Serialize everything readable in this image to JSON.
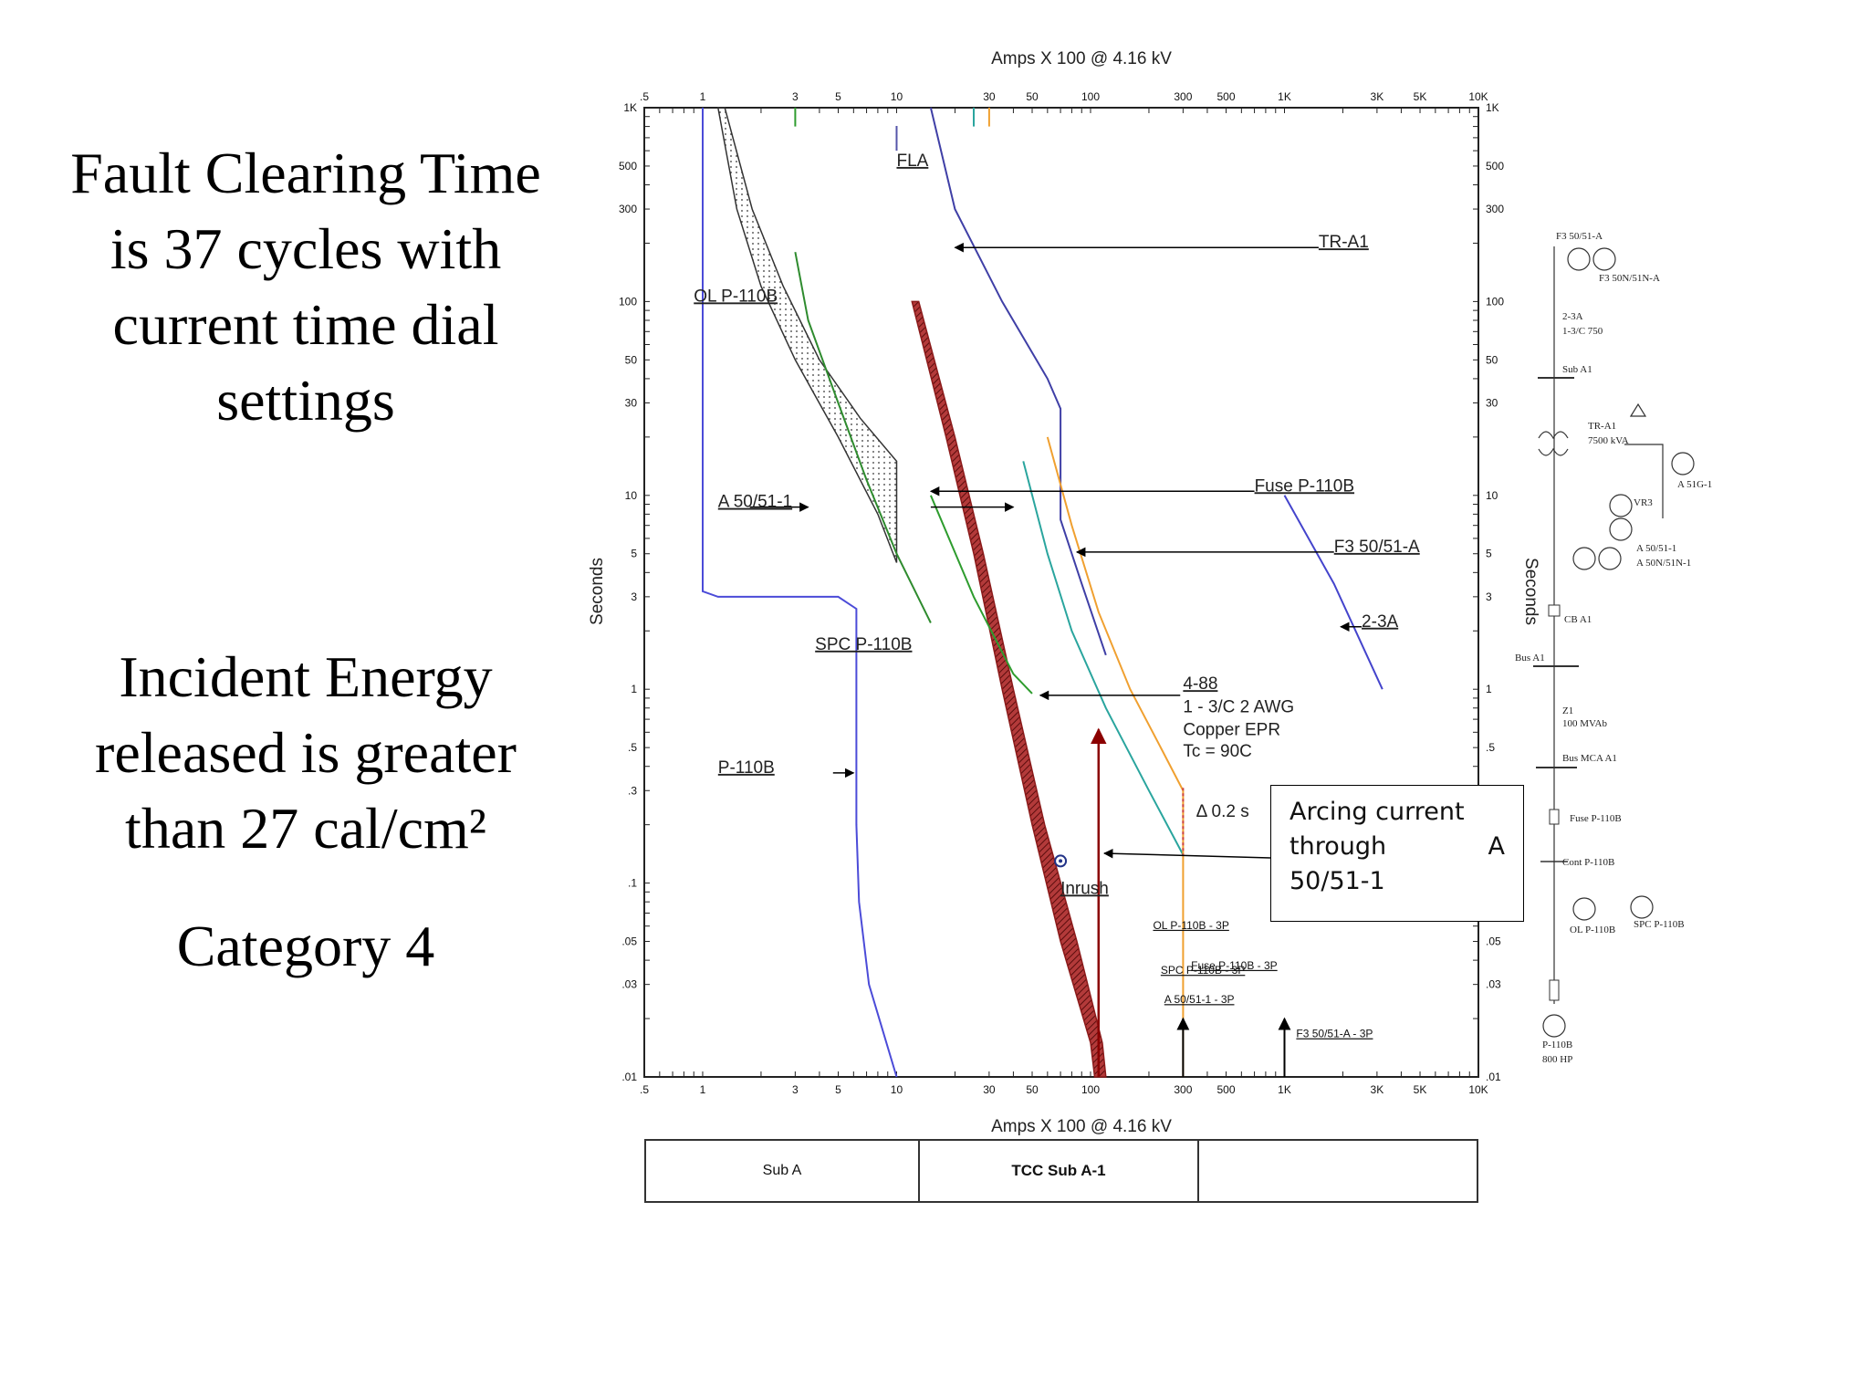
{
  "slide": {
    "title_lines": [
      "Fault Clearing Time",
      "is 37 cycles with",
      "current time dial",
      "settings"
    ],
    "energy_lines": [
      "Incident Energy",
      "released is greater",
      "than 27 cal/cm²"
    ],
    "category": "Category 4"
  },
  "chart_data": {
    "type": "line",
    "title": "",
    "xlabel": "Amps  X  100 @ 4.16 kV",
    "ylabel": "Seconds",
    "x_scale": "log",
    "y_scale": "log",
    "xlim": [
      0.5,
      10000
    ],
    "ylim": [
      0.01,
      1000
    ],
    "x_ticks": [
      {
        "v": 0.5,
        "t": ".5"
      },
      {
        "v": 1,
        "t": "1"
      },
      {
        "v": 3,
        "t": "3"
      },
      {
        "v": 5,
        "t": "5"
      },
      {
        "v": 10,
        "t": "10"
      },
      {
        "v": 30,
        "t": "30"
      },
      {
        "v": 50,
        "t": "50"
      },
      {
        "v": 100,
        "t": "100"
      },
      {
        "v": 300,
        "t": "300"
      },
      {
        "v": 500,
        "t": "500"
      },
      {
        "v": 1000,
        "t": "1K"
      },
      {
        "v": 3000,
        "t": "3K"
      },
      {
        "v": 5000,
        "t": "5K"
      },
      {
        "v": 10000,
        "t": "10K"
      }
    ],
    "y_ticks": [
      {
        "v": 0.01,
        "t": ".01"
      },
      {
        "v": 0.03,
        "t": ".03"
      },
      {
        "v": 0.05,
        "t": ".05"
      },
      {
        "v": 0.1,
        "t": ".1"
      },
      {
        "v": 0.3,
        "t": ".3"
      },
      {
        "v": 0.5,
        "t": ".5"
      },
      {
        "v": 1,
        "t": "1"
      },
      {
        "v": 3,
        "t": "3"
      },
      {
        "v": 5,
        "t": "5"
      },
      {
        "v": 10,
        "t": "10"
      },
      {
        "v": 30,
        "t": "30"
      },
      {
        "v": 50,
        "t": "50"
      },
      {
        "v": 100,
        "t": "100"
      },
      {
        "v": 300,
        "t": "300"
      },
      {
        "v": 500,
        "t": "500"
      },
      {
        "v": 1000,
        "t": "1K"
      }
    ],
    "series": [
      {
        "id": "p110b",
        "color": "#4b4bd8",
        "points": [
          [
            1,
            1000
          ],
          [
            1,
            3.2
          ],
          [
            1.2,
            3.0
          ],
          [
            5,
            3.0
          ],
          [
            6.2,
            2.6
          ],
          [
            6.2,
            0.2
          ],
          [
            6.4,
            0.08
          ],
          [
            7.2,
            0.03
          ],
          [
            10,
            0.01
          ]
        ]
      },
      {
        "id": "tr-a1",
        "color": "#3f3fa6",
        "points": [
          [
            15,
            1000
          ],
          [
            20,
            300
          ],
          [
            35,
            100
          ],
          [
            60,
            40
          ],
          [
            70,
            28
          ],
          [
            70,
            7.5
          ],
          [
            90,
            3.5
          ],
          [
            120,
            1.5
          ]
        ]
      },
      {
        "id": "fuse-p110b-band",
        "color": "#8b1a1a",
        "band": true,
        "lower": [
          [
            12,
            100
          ],
          [
            18,
            20
          ],
          [
            25,
            5
          ],
          [
            35,
            1
          ],
          [
            50,
            0.2
          ],
          [
            70,
            0.05
          ],
          [
            100,
            0.015
          ],
          [
            105,
            0.01
          ]
        ],
        "upper": [
          [
            13,
            100
          ],
          [
            20,
            20
          ],
          [
            28,
            5
          ],
          [
            40,
            1
          ],
          [
            58,
            0.2
          ],
          [
            85,
            0.05
          ],
          [
            115,
            0.015
          ],
          [
            120,
            0.01
          ]
        ]
      },
      {
        "id": "ol-p110b-band",
        "color": "#333333",
        "band": true,
        "lower": [
          [
            1.2,
            1000
          ],
          [
            1.5,
            300
          ],
          [
            2,
            120
          ],
          [
            3,
            50
          ],
          [
            5,
            20
          ],
          [
            8,
            8
          ],
          [
            10,
            4.5
          ]
        ],
        "upper": [
          [
            1.3,
            1000
          ],
          [
            1.8,
            300
          ],
          [
            2.6,
            120
          ],
          [
            4,
            50
          ],
          [
            6.5,
            25
          ],
          [
            10,
            15
          ]
        ]
      },
      {
        "id": "spc-p110b",
        "color": "#2e8b2e",
        "points": [
          [
            3.0,
            180
          ],
          [
            3.5,
            80
          ],
          [
            5,
            30
          ],
          [
            7,
            12
          ],
          [
            10,
            5
          ],
          [
            15,
            2.2
          ]
        ]
      },
      {
        "id": "a50-51-1",
        "color": "#2e9c2e",
        "points": [
          [
            3,
            1000
          ],
          [
            3,
            800
          ]
        ],
        "extra": [
          [
            15,
            10
          ],
          [
            25,
            3
          ],
          [
            40,
            1.2
          ],
          [
            50,
            0.95
          ]
        ]
      },
      {
        "id": "4-88",
        "color": "#2aa59e",
        "points": [
          [
            25,
            1000
          ],
          [
            25,
            800
          ]
        ],
        "extra": [
          [
            45,
            15
          ],
          [
            60,
            5
          ],
          [
            80,
            2
          ],
          [
            120,
            0.8
          ],
          [
            200,
            0.3
          ],
          [
            300,
            0.14
          ]
        ]
      },
      {
        "id": "f3-50-51-a",
        "color": "#f0a030",
        "points": [
          [
            30,
            1000
          ],
          [
            30,
            800
          ]
        ],
        "extra": [
          [
            60,
            20
          ],
          [
            80,
            7
          ],
          [
            110,
            2.5
          ],
          [
            160,
            1
          ],
          [
            230,
            0.5
          ],
          [
            300,
            0.3
          ],
          [
            300,
            0.01
          ]
        ]
      },
      {
        "id": "2-3a",
        "color": "#4444cc",
        "points": [
          [
            1000,
            10
          ],
          [
            1800,
            3.5
          ],
          [
            3200,
            1
          ]
        ]
      }
    ],
    "annotations": [
      {
        "text": "FLA",
        "x": 10,
        "y": 500,
        "anchor": "start"
      },
      {
        "text": "TR-A1",
        "x": 1500,
        "y": 190,
        "anchor": "start"
      },
      {
        "text": "OL P-110B",
        "x": 0.9,
        "y": 100,
        "anchor": "start"
      },
      {
        "text": "Fuse P-110B",
        "x": 700,
        "y": 10.5,
        "anchor": "start"
      },
      {
        "text": "A 50/51-1",
        "x": 1.2,
        "y": 8.7,
        "anchor": "start"
      },
      {
        "text": "F3 50/51-A",
        "x": 1800,
        "y": 5.1,
        "anchor": "start"
      },
      {
        "text": "2-3A",
        "x": 2500,
        "y": 2.1,
        "anchor": "start"
      },
      {
        "text": "SPC P-110B",
        "x": 3.8,
        "y": 1.6,
        "anchor": "start"
      },
      {
        "text": "4-88",
        "x": 300,
        "y": 1.0,
        "anchor": "start"
      },
      {
        "text": "1 - 3/C 2 AWG",
        "x": 300,
        "y": 0.76,
        "anchor": "start"
      },
      {
        "text": "Copper  EPR",
        "x": 300,
        "y": 0.58,
        "anchor": "start"
      },
      {
        "text": "Tc = 90C",
        "x": 300,
        "y": 0.45,
        "anchor": "start"
      },
      {
        "text": "P-110B",
        "x": 1.2,
        "y": 0.37,
        "anchor": "start"
      },
      {
        "text": "Δ 0.2 s",
        "x": 350,
        "y": 0.22,
        "anchor": "start"
      },
      {
        "text": "Inrush",
        "x": 70,
        "y": 0.088,
        "anchor": "start"
      }
    ],
    "small_labels": [
      {
        "text": "OL P-110B - 3P",
        "x": 210,
        "y": 0.058
      },
      {
        "text": "SPC P-110B - 3P",
        "x": 230,
        "y": 0.034
      },
      {
        "text": "Fuse P-110B - 3P",
        "x": 330,
        "y": 0.036
      },
      {
        "text": "A 50/51-1 - 3P",
        "x": 240,
        "y": 0.024
      },
      {
        "text": "F3 50/51-A - 3P",
        "x": 1150,
        "y": 0.016
      }
    ],
    "arcing_box": [
      "Arcing current",
      "through",
      "A",
      "50/51-1"
    ],
    "inrush_point": {
      "x": 70,
      "y": 0.13
    },
    "fault_arrow": {
      "x": 110,
      "y_top": 0.62,
      "y_bottom": 0.01
    }
  },
  "one_line": {
    "labels": [
      "F3 50/51-A",
      "F3 50N/51N-A",
      "2-3A",
      "1-3/C 750",
      "Sub A1",
      "TR-A1",
      "7500 kVA",
      "A 51G-1",
      "VR3",
      "A 50/51-1",
      "A 50N/51N-1",
      "CB A1",
      "Bus A1",
      "Z1",
      "100 MVAb",
      "Bus MCA A1",
      "Fuse P-110B",
      "Cont P-110B",
      "OL P-110B",
      "SPC P-110B",
      "P-110B",
      "800 HP"
    ]
  },
  "footer": {
    "sub": "Sub A",
    "tcc": "TCC Sub A-1"
  }
}
